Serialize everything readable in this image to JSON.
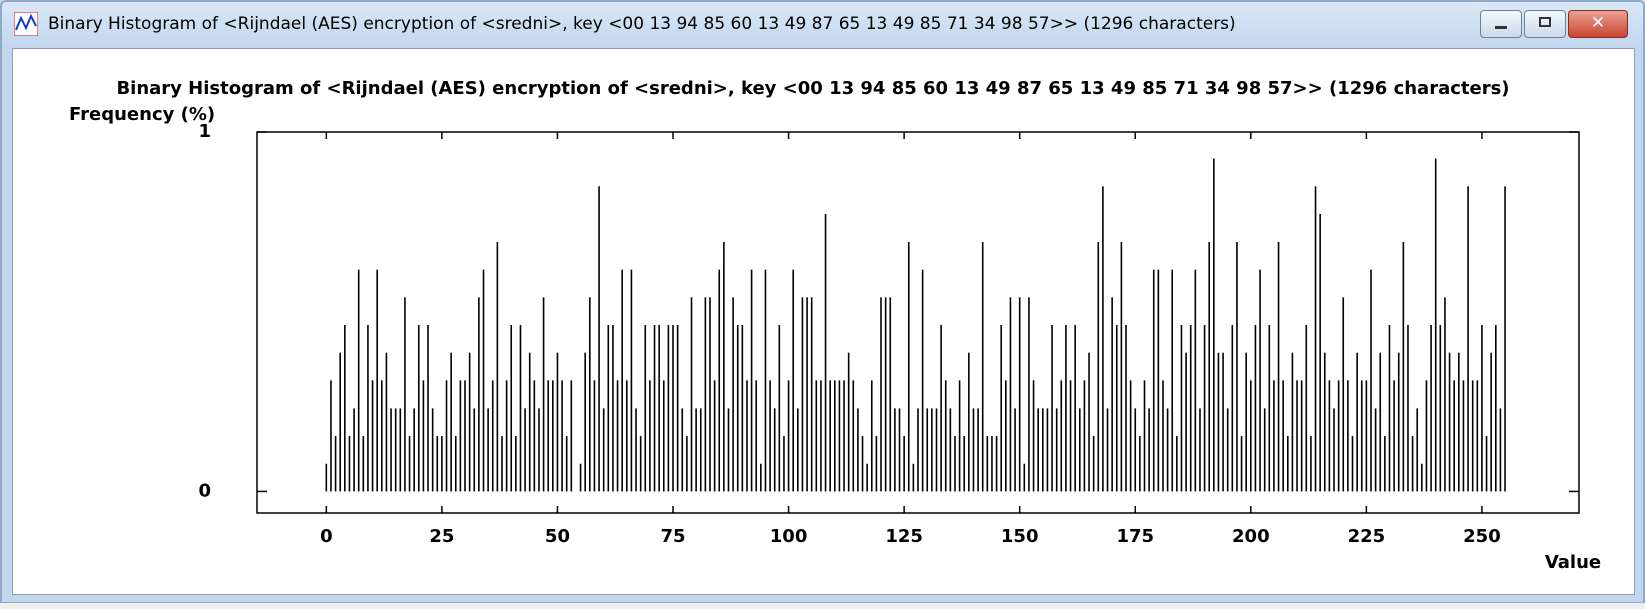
{
  "window": {
    "title": "Binary Histogram of <Rijndael (AES) encryption of <sredni>, key <00 13 94 85 60 13 49 87 65 13 49 85 71 34 98 57>> (1296 characters)"
  },
  "chart_data": {
    "type": "bar",
    "title": "Binary Histogram of <Rijndael (AES) encryption of <sredni>, key <00 13 94 85 60 13 49 87 65 13 49 85 71 34 98 57>> (1296 characters)",
    "y_label": "Frequency (%)",
    "x_label": "Value",
    "color": "#000000",
    "xlim": [
      -15,
      271
    ],
    "xticks": [
      0,
      25,
      50,
      75,
      100,
      125,
      150,
      175,
      200,
      225,
      250
    ],
    "ylim": [
      -0.06,
      1
    ],
    "yticks": [
      0,
      1
    ],
    "x": [
      0,
      1,
      2,
      3,
      4,
      5,
      6,
      7,
      8,
      9,
      10,
      11,
      12,
      13,
      14,
      15,
      16,
      17,
      18,
      19,
      20,
      21,
      22,
      23,
      24,
      25,
      26,
      27,
      28,
      29,
      30,
      31,
      32,
      33,
      34,
      35,
      36,
      37,
      38,
      39,
      40,
      41,
      42,
      43,
      44,
      45,
      46,
      47,
      48,
      49,
      50,
      51,
      52,
      53,
      54,
      55,
      56,
      57,
      58,
      59,
      60,
      61,
      62,
      63,
      64,
      65,
      66,
      67,
      68,
      69,
      70,
      71,
      72,
      73,
      74,
      75,
      76,
      77,
      78,
      79,
      80,
      81,
      82,
      83,
      84,
      85,
      86,
      87,
      88,
      89,
      90,
      91,
      92,
      93,
      94,
      95,
      96,
      97,
      98,
      99,
      100,
      101,
      102,
      103,
      104,
      105,
      106,
      107,
      108,
      109,
      110,
      111,
      112,
      113,
      114,
      115,
      116,
      117,
      118,
      119,
      120,
      121,
      122,
      123,
      124,
      125,
      126,
      127,
      128,
      129,
      130,
      131,
      132,
      133,
      134,
      135,
      136,
      137,
      138,
      139,
      140,
      141,
      142,
      143,
      144,
      145,
      146,
      147,
      148,
      149,
      150,
      151,
      152,
      153,
      154,
      155,
      156,
      157,
      158,
      159,
      160,
      161,
      162,
      163,
      164,
      165,
      166,
      167,
      168,
      169,
      170,
      171,
      172,
      173,
      174,
      175,
      176,
      177,
      178,
      179,
      180,
      181,
      182,
      183,
      184,
      185,
      186,
      187,
      188,
      189,
      190,
      191,
      192,
      193,
      194,
      195,
      196,
      197,
      198,
      199,
      200,
      201,
      202,
      203,
      204,
      205,
      206,
      207,
      208,
      209,
      210,
      211,
      212,
      213,
      214,
      215,
      216,
      217,
      218,
      219,
      220,
      221,
      222,
      223,
      224,
      225,
      226,
      227,
      228,
      229,
      230,
      231,
      232,
      233,
      234,
      235,
      236,
      237,
      238,
      239,
      240,
      241,
      242,
      243,
      244,
      245,
      246,
      247,
      248,
      249,
      250,
      251,
      252,
      253,
      254,
      255
    ],
    "values": [
      0.077,
      0.309,
      0.154,
      0.386,
      0.463,
      0.154,
      0.231,
      0.617,
      0.154,
      0.463,
      0.309,
      0.617,
      0.309,
      0.386,
      0.231,
      0.231,
      0.231,
      0.54,
      0.154,
      0.231,
      0.463,
      0.309,
      0.463,
      0.231,
      0.154,
      0.154,
      0.309,
      0.386,
      0.154,
      0.309,
      0.309,
      0.386,
      0.231,
      0.54,
      0.617,
      0.231,
      0.309,
      0.694,
      0.154,
      0.309,
      0.463,
      0.154,
      0.463,
      0.231,
      0.386,
      0.309,
      0.231,
      0.54,
      0.309,
      0.309,
      0.386,
      0.309,
      0.154,
      0.309,
      0,
      0.077,
      0.386,
      0.54,
      0.309,
      0.849,
      0.231,
      0.463,
      0.463,
      0.309,
      0.617,
      0.309,
      0.617,
      0.231,
      0.154,
      0.463,
      0.309,
      0.463,
      0.463,
      0.309,
      0.463,
      0.463,
      0.463,
      0.231,
      0.154,
      0.54,
      0.231,
      0.231,
      0.54,
      0.54,
      0.309,
      0.617,
      0.694,
      0.231,
      0.54,
      0.463,
      0.463,
      0.309,
      0.617,
      0.309,
      0.077,
      0.617,
      0.309,
      0.231,
      0.463,
      0.154,
      0.309,
      0.617,
      0.231,
      0.54,
      0.54,
      0.54,
      0.309,
      0.309,
      0.772,
      0.309,
      0.309,
      0.309,
      0.309,
      0.386,
      0.309,
      0.231,
      0.154,
      0.077,
      0.309,
      0.154,
      0.54,
      0.54,
      0.54,
      0.231,
      0.231,
      0.154,
      0.694,
      0.077,
      0.231,
      0.617,
      0.231,
      0.231,
      0.231,
      0.463,
      0.309,
      0.231,
      0.154,
      0.309,
      0.154,
      0.386,
      0.231,
      0.231,
      0.694,
      0.154,
      0.154,
      0.154,
      0.463,
      0.309,
      0.54,
      0.231,
      0.54,
      0.077,
      0.54,
      0.309,
      0.231,
      0.231,
      0.231,
      0.463,
      0.231,
      0.309,
      0.463,
      0.309,
      0.463,
      0.231,
      0.309,
      0.386,
      0.154,
      0.694,
      0.849,
      0.231,
      0.54,
      0.463,
      0.694,
      0.463,
      0.309,
      0.231,
      0.154,
      0.309,
      0.231,
      0.617,
      0.617,
      0.309,
      0.231,
      0.617,
      0.154,
      0.463,
      0.386,
      0.463,
      0.617,
      0.231,
      0.463,
      0.694,
      0.926,
      0.386,
      0.386,
      0.231,
      0.463,
      0.694,
      0.154,
      0.386,
      0.309,
      0.463,
      0.617,
      0.231,
      0.463,
      0.309,
      0.694,
      0.309,
      0.154,
      0.386,
      0.309,
      0.309,
      0.463,
      0.154,
      0.849,
      0.772,
      0.386,
      0.309,
      0.231,
      0.309,
      0.54,
      0.309,
      0.154,
      0.386,
      0.309,
      0.309,
      0.617,
      0.231,
      0.386,
      0.154,
      0.463,
      0.309,
      0.386,
      0.694,
      0.463,
      0.154,
      0.231,
      0.077,
      0.309,
      0.463,
      0.926,
      0.463,
      0.54,
      0.386,
      0.309,
      0.386,
      0.309,
      0.849,
      0.309,
      0.309,
      0.463,
      0.154,
      0.386,
      0.463,
      0.231,
      0.849
    ]
  }
}
